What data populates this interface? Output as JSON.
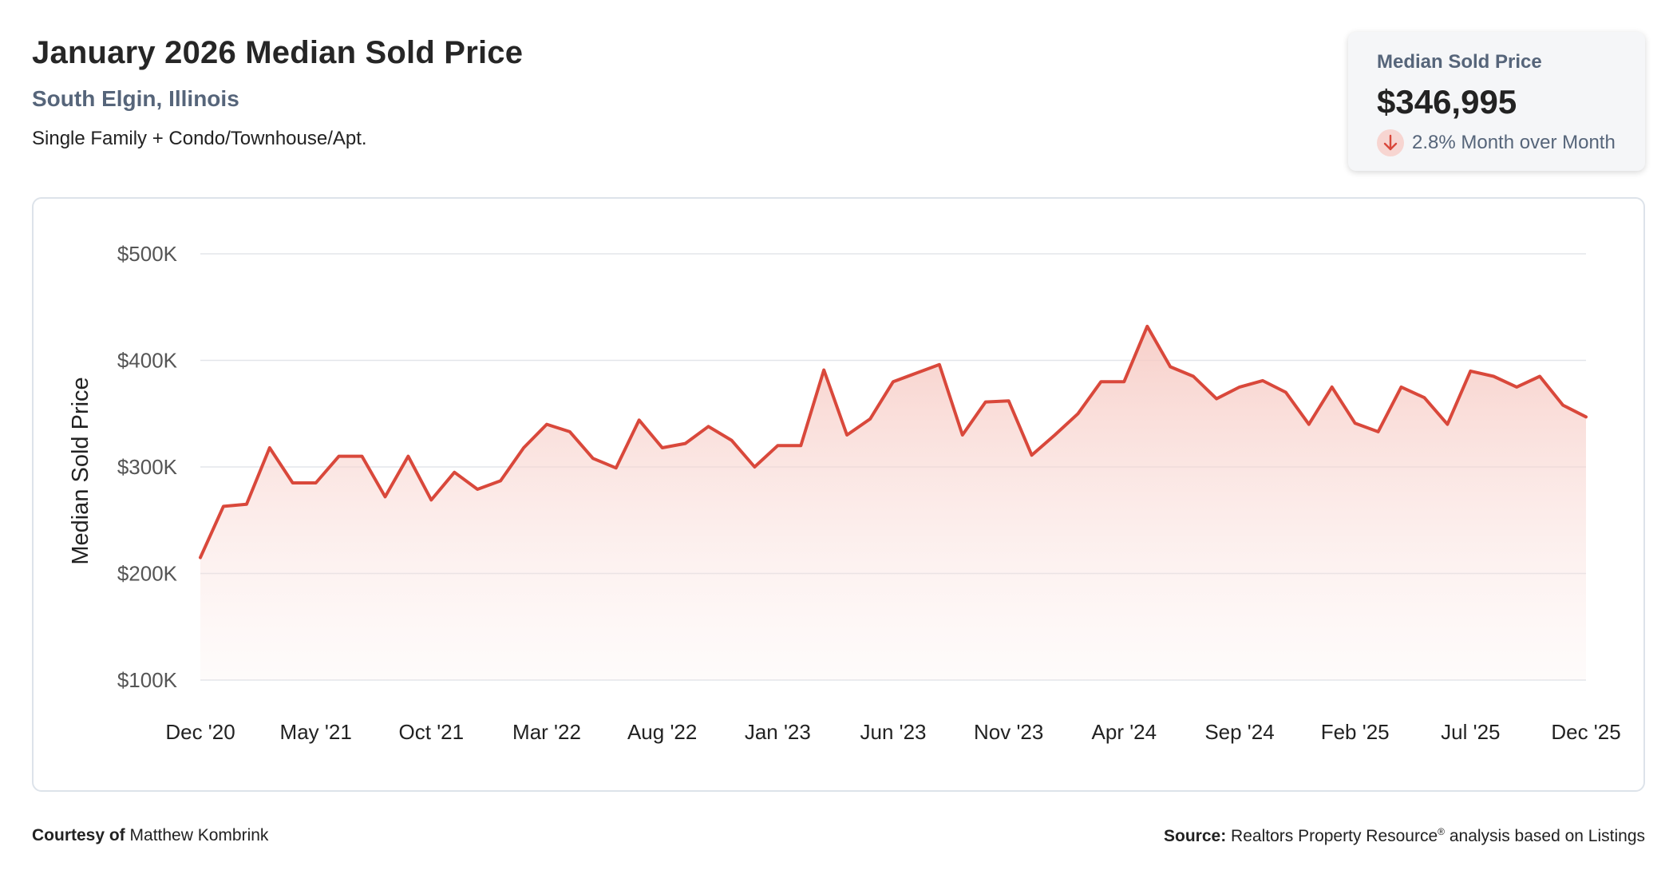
{
  "header": {
    "title": "January 2026 Median Sold Price",
    "location": "South Elgin, Illinois",
    "property_type": "Single Family + Condo/Townhouse/Apt."
  },
  "stat_card": {
    "label": "Median Sold Price",
    "value": "$346,995",
    "change_text": "2.8% Month over Month",
    "change_direction": "down",
    "icon": "arrow-down-icon"
  },
  "footer": {
    "courtesy_label": "Courtesy of",
    "courtesy_name": "Matthew Kombrink",
    "source_label": "Source:",
    "source_text_1": "Realtors Property Resource",
    "source_mark": "®",
    "source_text_2": "analysis based on Listings"
  },
  "colors": {
    "line": "#d9483b",
    "fill_top": "#f6c7c0",
    "grid": "#e3e6ea",
    "axis_text": "#555555"
  },
  "chart_data": {
    "type": "area",
    "ylabel": "Median Sold Price",
    "xlabel": "",
    "ylim": [
      100000,
      500000
    ],
    "yticks": [
      100000,
      200000,
      300000,
      400000,
      500000
    ],
    "ytick_labels": [
      "$100K",
      "$200K",
      "$300K",
      "$400K",
      "$500K"
    ],
    "xtick_labels": [
      "Dec '20",
      "May '21",
      "Oct '21",
      "Mar '22",
      "Aug '22",
      "Jan '23",
      "Jun '23",
      "Nov '23",
      "Apr '24",
      "Sep '24",
      "Feb '25",
      "Jul '25",
      "Dec '25"
    ],
    "grid": true,
    "legend": "none",
    "x": [
      "Dec '20",
      "Jan '21",
      "Feb '21",
      "Mar '21",
      "Apr '21",
      "May '21",
      "Jun '21",
      "Jul '21",
      "Aug '21",
      "Sep '21",
      "Oct '21",
      "Nov '21",
      "Dec '21",
      "Jan '22",
      "Feb '22",
      "Mar '22",
      "Apr '22",
      "May '22",
      "Jun '22",
      "Jul '22",
      "Aug '22",
      "Sep '22",
      "Oct '22",
      "Nov '22",
      "Dec '22",
      "Jan '23",
      "Feb '23",
      "Mar '23",
      "Apr '23",
      "May '23",
      "Jun '23",
      "Jul '23",
      "Aug '23",
      "Sep '23",
      "Oct '23",
      "Nov '23",
      "Dec '23",
      "Jan '24",
      "Feb '24",
      "Mar '24",
      "Apr '24",
      "May '24",
      "Jun '24",
      "Jul '24",
      "Aug '24",
      "Sep '24",
      "Oct '24",
      "Nov '24",
      "Dec '24",
      "Jan '25",
      "Feb '25",
      "Mar '25",
      "Apr '25",
      "May '25",
      "Jun '25",
      "Jul '25",
      "Aug '25",
      "Sep '25",
      "Oct '25",
      "Nov '25",
      "Dec '25"
    ],
    "series": [
      {
        "values": [
          215000,
          263000,
          265000,
          318000,
          285000,
          285000,
          310000,
          310000,
          272000,
          310000,
          269000,
          295000,
          279000,
          287000,
          318000,
          340000,
          333000,
          308000,
          299000,
          344000,
          318000,
          322000,
          338000,
          325000,
          300000,
          320000,
          320000,
          391000,
          330000,
          345000,
          380000,
          388000,
          396000,
          330000,
          361000,
          362000,
          311000,
          330000,
          350000,
          380000,
          380000,
          432000,
          394000,
          385000,
          364000,
          375000,
          381000,
          370000,
          340000,
          375000,
          341000,
          333000,
          375000,
          365000,
          340000,
          390000,
          385000,
          375000,
          385000,
          358000,
          347000
        ]
      }
    ]
  }
}
